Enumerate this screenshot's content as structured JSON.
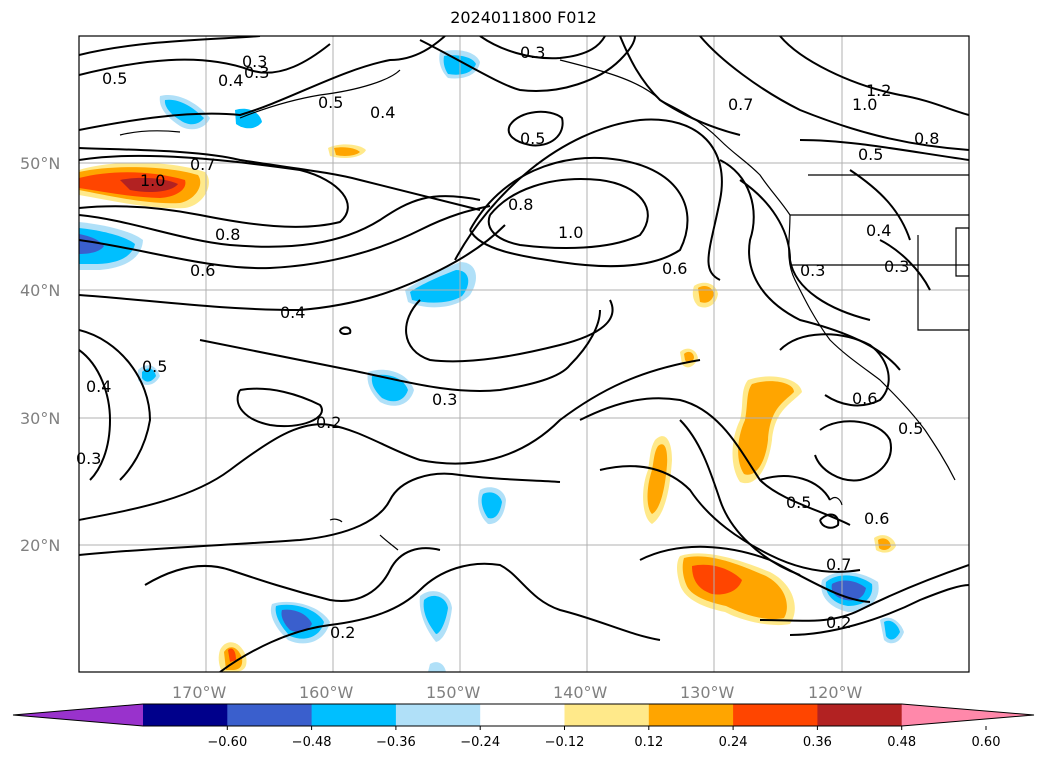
{
  "title": "2024011800 F012",
  "map": {
    "lat_labels": [
      "50°N",
      "40°N",
      "30°N",
      "20°N"
    ],
    "lon_labels": [
      "170°W",
      "160°W",
      "150°W",
      "140°W",
      "130°W",
      "120°W"
    ],
    "grid": true
  },
  "colorbar": {
    "ticks": [
      "−0.60",
      "−0.48",
      "−0.36",
      "−0.24",
      "−0.12",
      "0.12",
      "0.24",
      "0.36",
      "0.48",
      "0.60"
    ],
    "colors": [
      "#9932cc",
      "#00008b",
      "#3a5fcd",
      "#00bfff",
      "#b0e0f8",
      "#ffffff",
      "#ffe98a",
      "#ffa500",
      "#ff4500",
      "#b22222",
      "#ff88aa"
    ]
  },
  "contour_labels": [
    "0.5",
    "0.4",
    "0.3",
    "0.3",
    "0.5",
    "0.4",
    "0.3",
    "0.5",
    "0.7",
    "1.2",
    "1.0",
    "0.8",
    "0.5",
    "1.0",
    "0.7",
    "0.8",
    "0.8",
    "1.0",
    "0.6",
    "0.4",
    "0.3",
    "0.3",
    "0.6",
    "0.4",
    "0.5",
    "0.4",
    "0.3",
    "0.2",
    "0.3",
    "0.6",
    "0.5",
    "0.5",
    "0.6",
    "0.7",
    "0.2",
    "0.2"
  ]
}
